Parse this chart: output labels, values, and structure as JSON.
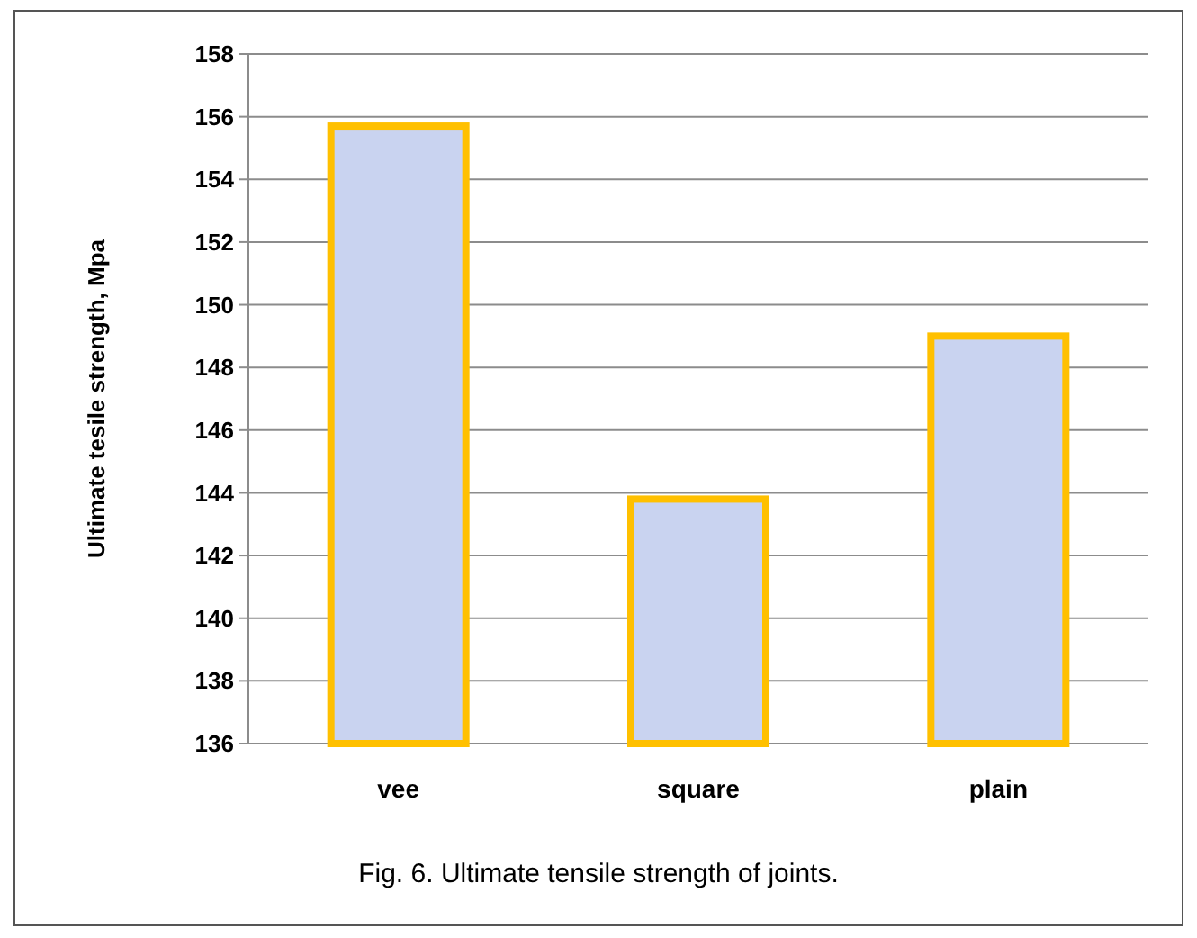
{
  "chart_data": {
    "type": "bar",
    "ylabel": "Ultimate tesile strength, Mpa",
    "categories": [
      "vee",
      "square",
      "plain"
    ],
    "series": [
      {
        "color": "#c9d3f0",
        "values": [
          155.7,
          143.8,
          149.0
        ]
      }
    ],
    "ylim": [
      136,
      158
    ],
    "yticks": [
      136,
      138,
      140,
      142,
      144,
      146,
      148,
      150,
      152,
      154,
      156,
      158
    ],
    "grid": "y",
    "annotations": [
      "Fig. 6. Ultimate tensile strength of joints."
    ]
  }
}
